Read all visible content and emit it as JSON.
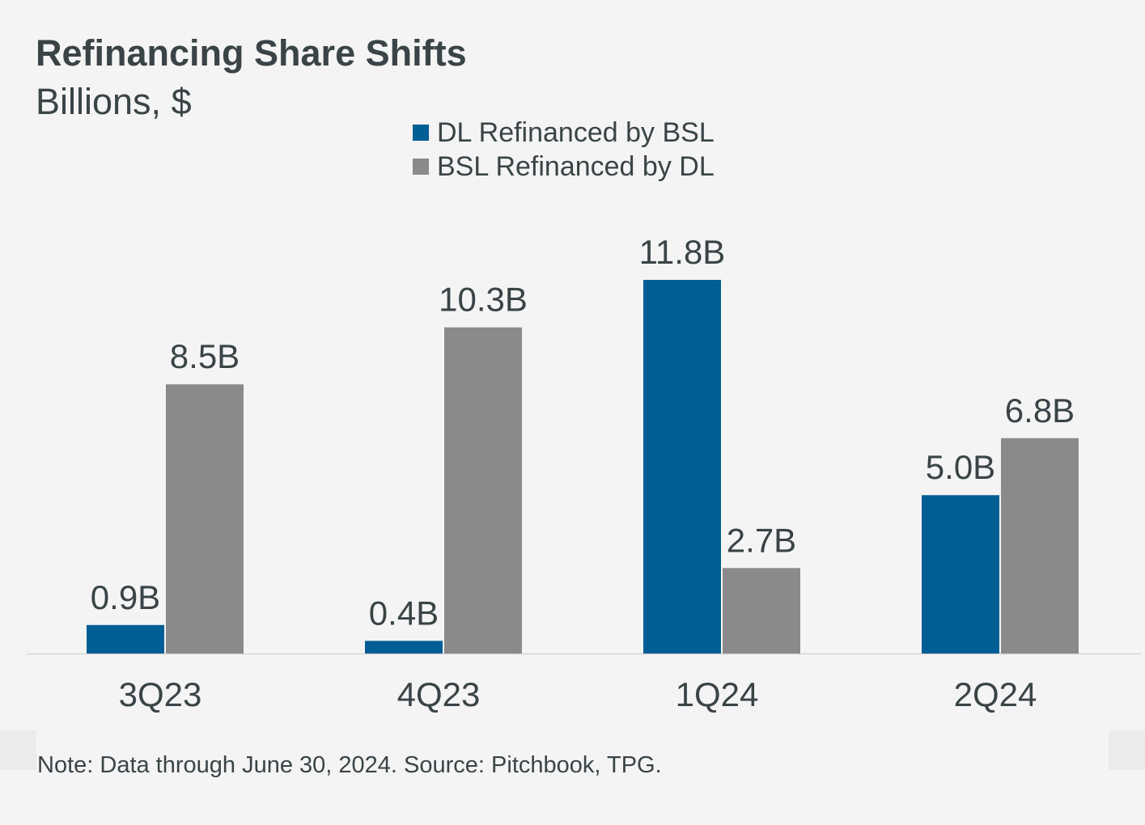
{
  "chart_data": {
    "type": "bar",
    "title": "Refinancing Share Shifts",
    "subtitle": "Billions, $",
    "categories": [
      "3Q23",
      "4Q23",
      "1Q24",
      "2Q24"
    ],
    "series": [
      {
        "name": "DL Refinanced by BSL",
        "color": "#005e95",
        "values": [
          0.9,
          0.4,
          11.8,
          5.0
        ],
        "labels": [
          "0.9B",
          "0.4B",
          "11.8B",
          "5.0B"
        ]
      },
      {
        "name": "BSL Refinanced by DL",
        "color": "#8a8a8a",
        "values": [
          8.5,
          10.3,
          2.7,
          6.8
        ],
        "labels": [
          "8.5B",
          "10.3B",
          "2.7B",
          "6.8B"
        ]
      }
    ],
    "xlabel": "",
    "ylabel": "",
    "ylim": [
      0,
      11.8
    ],
    "grid": false,
    "legend": "top-center"
  },
  "note": "Note: Data through June 30, 2024. Source: Pitchbook, TPG."
}
